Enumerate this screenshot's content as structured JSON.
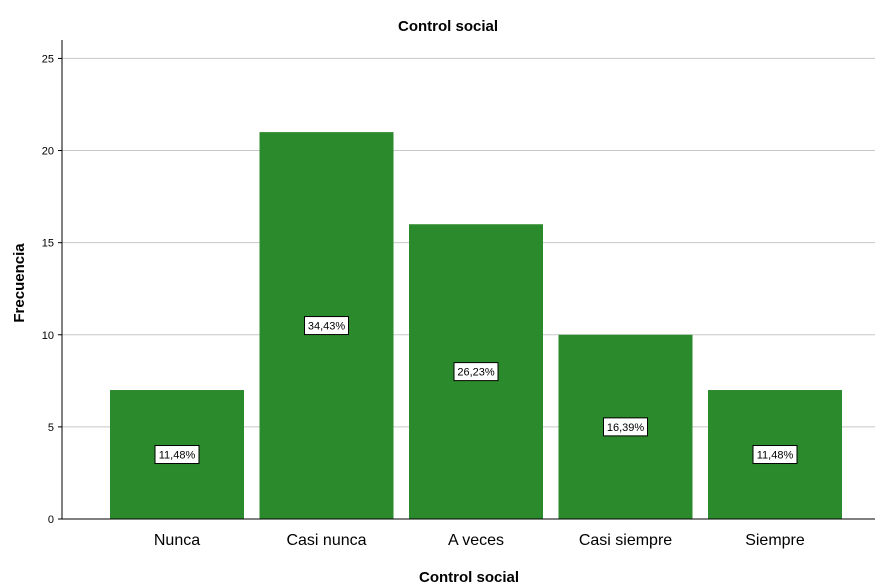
{
  "chart_data": {
    "type": "bar",
    "title": "Control social",
    "xlabel": "Control social",
    "ylabel": "Frecuencia",
    "categories": [
      "Nunca",
      "Casi nunca",
      "A veces",
      "Casi siempre",
      "Siempre"
    ],
    "values": [
      7,
      21,
      16,
      10,
      7
    ],
    "data_labels": [
      "11,48%",
      "34,43%",
      "26,23%",
      "16,39%",
      "11,48%"
    ],
    "ylim": [
      0,
      26
    ],
    "yticks": [
      0,
      5,
      10,
      15,
      20,
      25
    ],
    "grid": true,
    "bar_color": "#2b8a2b",
    "grid_color": "#c8c8c8",
    "axis_color": "#000000"
  }
}
